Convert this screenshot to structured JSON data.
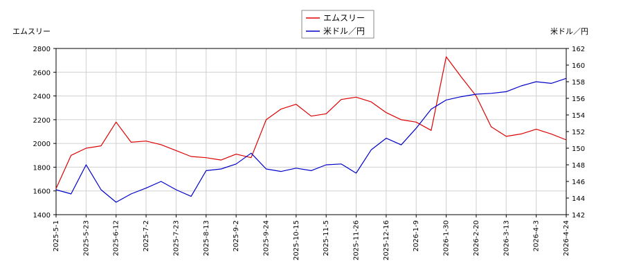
{
  "chart_data": {
    "type": "line",
    "title": "",
    "legend_position": "top-center",
    "grid": true,
    "y_left": {
      "label": "エムスリー",
      "range": [
        1400,
        2800
      ],
      "ticks": [
        1400,
        1600,
        1800,
        2000,
        2200,
        2400,
        2600,
        2800
      ]
    },
    "y_right": {
      "label": "米ドル／円",
      "range": [
        142,
        162
      ],
      "ticks": [
        142,
        144,
        146,
        148,
        150,
        152,
        154,
        156,
        158,
        160,
        162
      ]
    },
    "x_ticks": [
      "2025-5-1",
      "2025-5-23",
      "2025-6-12",
      "2025-7-2",
      "2025-7-23",
      "2025-8-13",
      "2025-9-2",
      "2025-9-24",
      "2025-10-15",
      "2025-11-5",
      "2025-11-26",
      "2025-12-16",
      "2026-1-9",
      "2026-1-30",
      "2026-2-20",
      "2026-3-13",
      "2026-4-3",
      "2026-4-24"
    ],
    "series": [
      {
        "name": "エムスリー",
        "axis": "left",
        "color": "#dd0000",
        "x": [
          0,
          0.5,
          1,
          1.5,
          2,
          2.5,
          3,
          3.5,
          4,
          4.5,
          5,
          5.5,
          6,
          6.5,
          7,
          7.5,
          8,
          8.5,
          9,
          9.5,
          10,
          10.5,
          11,
          11.5,
          12,
          12.5,
          13,
          13.5,
          14,
          14.5,
          15,
          15.5,
          16,
          16.5,
          17
        ],
        "y": [
          1620,
          1900,
          1960,
          1980,
          2180,
          2010,
          2020,
          1990,
          1940,
          1890,
          1880,
          1860,
          1910,
          1880,
          2200,
          2290,
          2330,
          2230,
          2250,
          2370,
          2390,
          2350,
          2260,
          2200,
          2180,
          2110,
          2730,
          2560,
          2400,
          2140,
          2060,
          2080,
          2120,
          2080,
          2030
        ]
      },
      {
        "name": "米ドル／円",
        "axis": "right",
        "color": "#0000cc",
        "x": [
          0,
          0.5,
          1,
          1.5,
          2,
          2.5,
          3,
          3.5,
          4,
          4.5,
          5,
          5.5,
          6,
          6.5,
          7,
          7.5,
          8,
          8.5,
          9,
          9.5,
          10,
          10.5,
          11,
          11.5,
          12,
          12.5,
          13,
          13.5,
          14,
          14.5,
          15,
          15.5,
          16,
          16.5,
          17
        ],
        "y": [
          145,
          144.5,
          148,
          145,
          143.5,
          144.5,
          145.2,
          146,
          145,
          144.2,
          147.3,
          147.5,
          148.1,
          149.4,
          147.5,
          147.2,
          147.6,
          147.3,
          148,
          148.1,
          147,
          149.8,
          151.2,
          150.4,
          152.4,
          154.7,
          155.8,
          156.2,
          156.5,
          156.6,
          156.8,
          157.5,
          158,
          157.8,
          158.4
        ]
      }
    ]
  }
}
